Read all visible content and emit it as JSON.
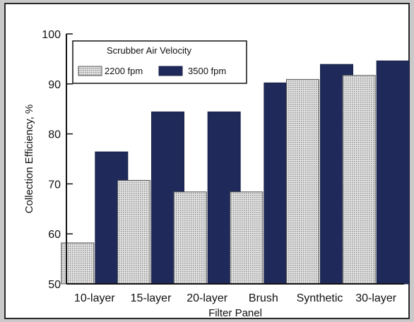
{
  "chart_data": {
    "type": "bar",
    "xlabel": "Filter Panel",
    "ylabel": "Collection Efficiency, %",
    "ylim": [
      50,
      100
    ],
    "yticks": [
      50,
      60,
      70,
      80,
      90,
      100
    ],
    "categories": [
      "10-layer",
      "15-layer",
      "20-layer",
      "Brush",
      "Synthetic",
      "30-layer"
    ],
    "legend_title": "Scrubber Air Velocity",
    "legend_position": "top-left",
    "series": [
      {
        "name": "2200 fpm",
        "color": "#c8c8c8",
        "pattern": "dotted",
        "values": [
          58.2,
          70.7,
          68.4,
          68.4,
          90.9,
          91.7
        ]
      },
      {
        "name": "3500 fpm",
        "color": "#1f2a5a",
        "pattern": "solid",
        "values": [
          76.4,
          84.4,
          84.4,
          90.2,
          93.9,
          94.6
        ]
      }
    ]
  }
}
